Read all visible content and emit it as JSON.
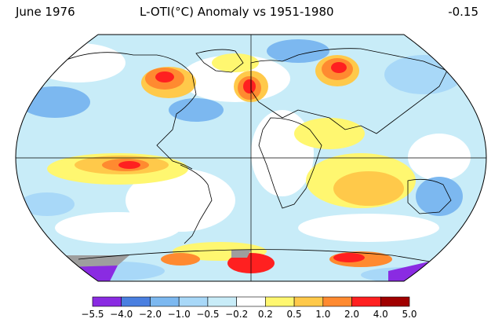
{
  "header": {
    "left": "June 1976",
    "center": "L-OTI(°C) Anomaly vs 1951-1980",
    "right": "-0.15"
  },
  "colorbar": {
    "ticks": [
      "−5.5",
      "−4.0",
      "−2.0",
      "−1.0",
      "−0.5",
      "−0.2",
      "0.2",
      "0.5",
      "1.0",
      "2.0",
      "4.0",
      "5.0"
    ],
    "colors": [
      "#8a2be2",
      "#4a7fe0",
      "#7cb8f0",
      "#a8d8f8",
      "#c8ecf8",
      "#ffffff",
      "#fff770",
      "#ffc94a",
      "#ff8a30",
      "#ff2020",
      "#a00000"
    ]
  },
  "map": {
    "ocean_base": "#c8ecf8",
    "land_outline": "#000000"
  }
}
